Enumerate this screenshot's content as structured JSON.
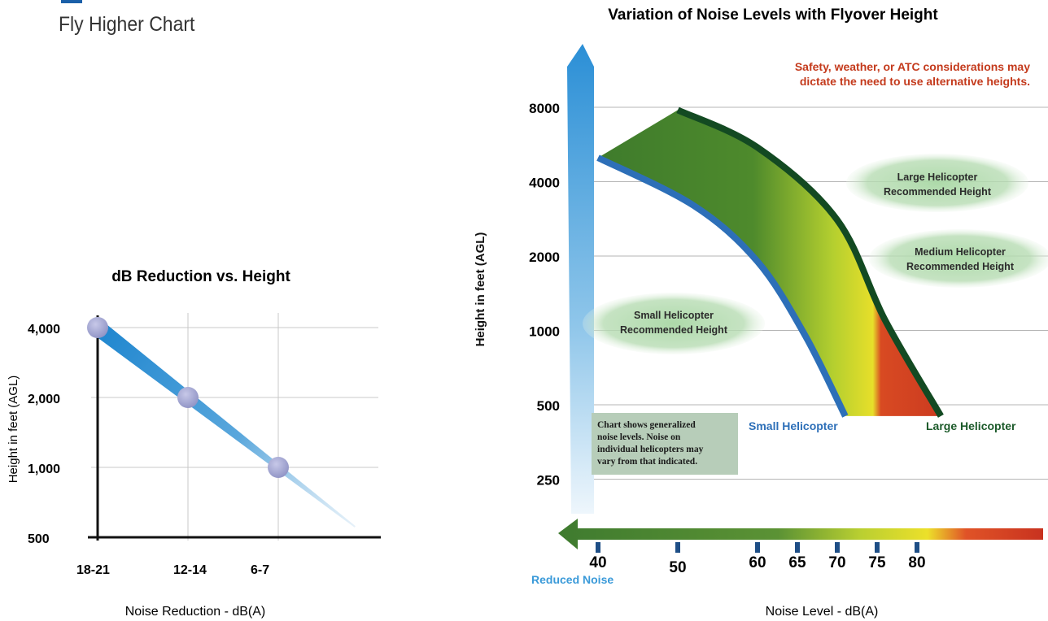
{
  "page": {
    "subtitle": "Fly Higher Chart"
  },
  "colors": {
    "blue_arrow": "#3a9ad9",
    "green": "#3d7a2c",
    "yellow": "#e7df2a",
    "red": "#c8321f",
    "small_edge": "#2d6fb8",
    "large_edge": "#134a22",
    "note_red": "#c43a1c",
    "bubble": "#a9d8a5",
    "note_box": "#b7cdb9"
  },
  "chart_data": [
    {
      "type": "line",
      "title": "dB Reduction vs. Height",
      "xlabel": "Noise Reduction - dB(A)",
      "ylabel": "Height in feet (AGL)",
      "x_tick_labels": [
        "18-21",
        "12-14",
        "6-7"
      ],
      "y_tick_labels": [
        "4,000",
        "2,000",
        "1,000",
        "500"
      ],
      "y_scale": "log",
      "series": [
        {
          "x": [
            "18-21",
            "12-14",
            "6-7"
          ],
          "y": [
            4000,
            2000,
            1000
          ]
        }
      ]
    },
    {
      "type": "area",
      "title": "Variation of Noise Levels with Flyover Height",
      "xlabel": "Noise Level - dB(A)",
      "ylabel": "Height in feet (AGL)",
      "y_scale": "log",
      "y_ticks": [
        8000,
        4000,
        2000,
        1000,
        500,
        250
      ],
      "x_ticks": [
        40,
        50,
        60,
        65,
        70,
        75,
        80
      ],
      "x_caption_low": "Reduced Noise",
      "series": [
        {
          "name": "Small Helicopter",
          "points": [
            {
              "x": 40,
              "y": 5000
            },
            {
              "x": 52,
              "y": 3200
            },
            {
              "x": 60,
              "y": 1900
            },
            {
              "x": 66,
              "y": 950
            },
            {
              "x": 71,
              "y": 450
            }
          ]
        },
        {
          "name": "Large Helicopter",
          "points": [
            {
              "x": 50,
              "y": 7800
            },
            {
              "x": 60,
              "y": 5500
            },
            {
              "x": 70,
              "y": 2800
            },
            {
              "x": 76,
              "y": 1100
            },
            {
              "x": 83,
              "y": 450
            }
          ]
        }
      ],
      "annotations": {
        "warning_line1": "Safety, weather, or ATC considerations may",
        "warning_line2": "dictate the need to use alternative heights.",
        "large_rec_line1": "Large Helicopter",
        "large_rec_line2": "Recommended Height",
        "medium_rec_line1": "Medium Helicopter",
        "medium_rec_line2": "Recommended Height",
        "small_rec_line1": "Small Helicopter",
        "small_rec_line2": "Recommended Height",
        "note_line1": "Chart shows generalized",
        "note_line2": "noise levels. Noise on",
        "note_line3": "individual helicopters may",
        "note_line4": "vary from that indicated."
      }
    }
  ]
}
